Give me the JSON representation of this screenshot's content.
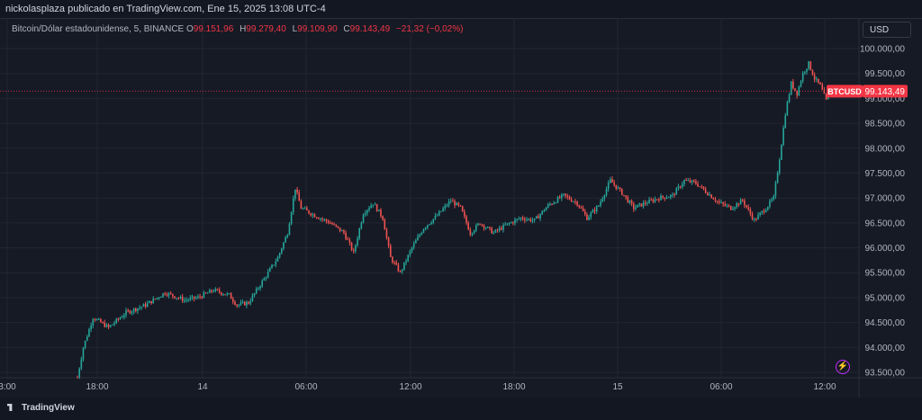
{
  "header": {
    "published": "nickolasplaza publicado en TradingView.com, Ene 15, 2025 13:08 UTC-4"
  },
  "legend": {
    "symbol": "Bitcoin/Dólar estadounidense, 5, BINANCE",
    "o_label": "O",
    "o_value": "99.151,96",
    "h_label": "H",
    "h_value": "99.279,40",
    "l_label": "L",
    "l_value": "99.109,90",
    "c_label": "C",
    "c_value": "99.143,49",
    "change": "−21,32 (−0,02%)"
  },
  "currency_button": "USD",
  "footer": {
    "brand": "TradingView"
  },
  "icons": {
    "bolt": "lightning-icon",
    "logo": "tradingview-logo-icon"
  },
  "colors": {
    "up": "#26a69a",
    "down": "#ef5350",
    "accent": "#f23645",
    "background": "#161a25"
  },
  "chart_data": {
    "type": "candlestick",
    "symbol": "BTCUSD",
    "interval": "5",
    "x_ticks": [
      "3:00",
      "18:00",
      "14",
      "06:00",
      "12:00",
      "18:00",
      "15",
      "06:00",
      "12:00"
    ],
    "y_ticks": [
      "100.000,00",
      "99.500,00",
      "99.000,00",
      "98.500,00",
      "98.000,00",
      "97.500,00",
      "97.000,00",
      "96.500,00",
      "96.000,00",
      "95.500,00",
      "95.000,00",
      "94.500,00",
      "94.000,00",
      "93.500,00"
    ],
    "ylim": [
      93350,
      100300
    ],
    "last_price": 99143.49,
    "last_price_label": "99.143,49",
    "price_tag": "BTCUSD",
    "grid": true,
    "approx_close_path": [
      [
        0,
        93400
      ],
      [
        3,
        94000
      ],
      [
        8,
        94600
      ],
      [
        16,
        94400
      ],
      [
        25,
        94700
      ],
      [
        35,
        94850
      ],
      [
        45,
        95100
      ],
      [
        55,
        94950
      ],
      [
        62,
        95000
      ],
      [
        70,
        95150
      ],
      [
        78,
        95050
      ],
      [
        82,
        94850
      ],
      [
        88,
        94900
      ],
      [
        93,
        95200
      ],
      [
        98,
        95500
      ],
      [
        103,
        95800
      ],
      [
        108,
        96300
      ],
      [
        112,
        97200
      ],
      [
        115,
        96800
      ],
      [
        122,
        96650
      ],
      [
        130,
        96500
      ],
      [
        137,
        96300
      ],
      [
        142,
        95900
      ],
      [
        147,
        96700
      ],
      [
        152,
        96900
      ],
      [
        157,
        96600
      ],
      [
        161,
        95800
      ],
      [
        166,
        95500
      ],
      [
        172,
        96000
      ],
      [
        178,
        96400
      ],
      [
        185,
        96650
      ],
      [
        192,
        96950
      ],
      [
        197,
        96800
      ],
      [
        202,
        96300
      ],
      [
        207,
        96500
      ],
      [
        214,
        96300
      ],
      [
        220,
        96450
      ],
      [
        228,
        96600
      ],
      [
        235,
        96550
      ],
      [
        242,
        96850
      ],
      [
        250,
        97050
      ],
      [
        257,
        96900
      ],
      [
        262,
        96600
      ],
      [
        268,
        96850
      ],
      [
        274,
        97350
      ],
      [
        280,
        97100
      ],
      [
        286,
        96800
      ],
      [
        292,
        96900
      ],
      [
        299,
        97000
      ],
      [
        306,
        97050
      ],
      [
        312,
        97350
      ],
      [
        318,
        97300
      ],
      [
        324,
        97100
      ],
      [
        330,
        96900
      ],
      [
        336,
        96800
      ],
      [
        342,
        96950
      ],
      [
        348,
        96550
      ],
      [
        354,
        96800
      ],
      [
        358,
        97000
      ],
      [
        361,
        97800
      ],
      [
        364,
        98700
      ],
      [
        367,
        99300
      ],
      [
        370,
        99100
      ],
      [
        373,
        99500
      ],
      [
        376,
        99700
      ],
      [
        379,
        99400
      ],
      [
        382,
        99250
      ],
      [
        385,
        98950
      ],
      [
        388,
        99150
      ],
      [
        390,
        99143
      ]
    ]
  }
}
